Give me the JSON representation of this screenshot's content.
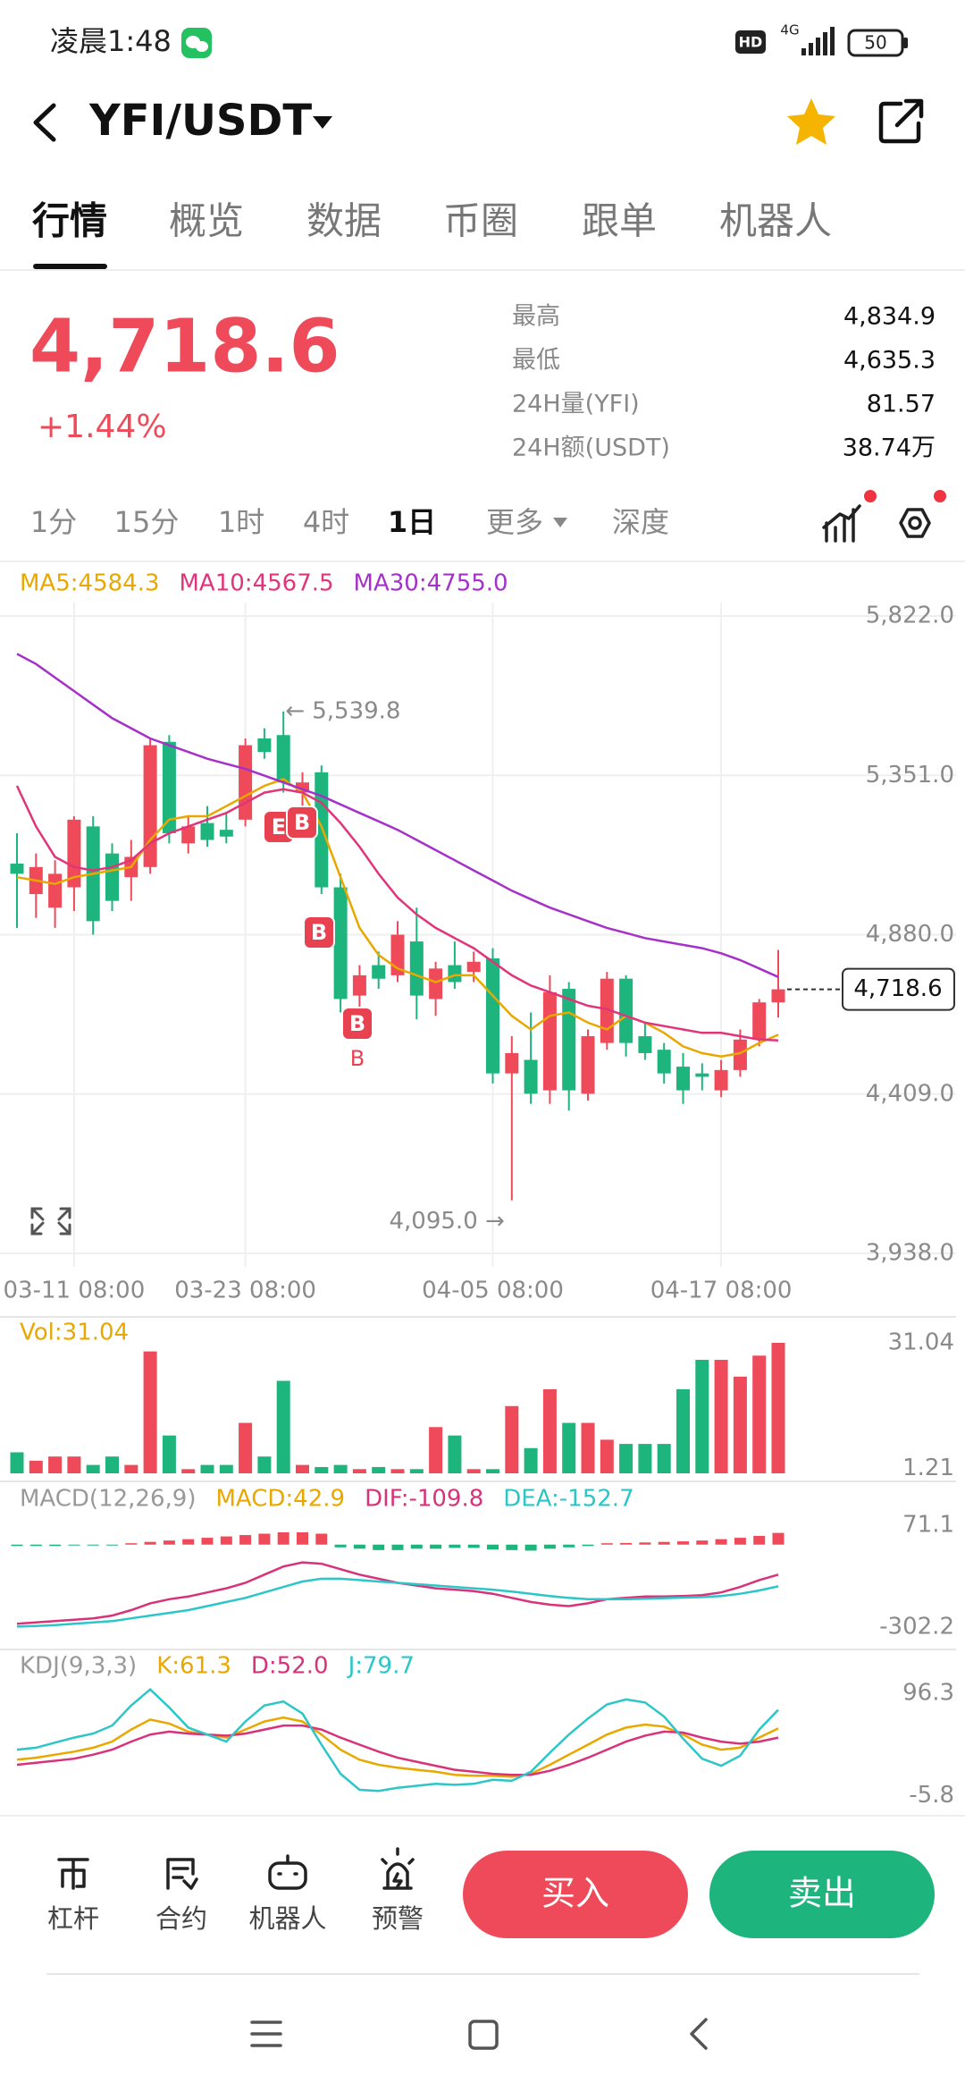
{
  "status_bar": {
    "time": "凌晨1:48",
    "hd": "HD",
    "network": "4G",
    "battery": "50"
  },
  "header": {
    "pair": "YFI/USDT"
  },
  "tabs": [
    "行情",
    "概览",
    "数据",
    "币圈",
    "跟单",
    "机器人"
  ],
  "active_tab": 0,
  "ticker": {
    "price": "4,718.6",
    "change": "+1.44%",
    "stats": [
      {
        "label": "最高",
        "value": "4,834.9"
      },
      {
        "label": "最低",
        "value": "4,635.3"
      },
      {
        "label": "24H量(YFI)",
        "value": "81.57"
      },
      {
        "label": "24H额(USDT)",
        "value": "38.74万"
      }
    ]
  },
  "intervals": [
    "1分",
    "15分",
    "1时",
    "4时",
    "1日",
    "更多",
    "深度"
  ],
  "active_interval": 4,
  "chart_data": [
    {
      "type": "candlestick",
      "up_color": "#ef4a5a",
      "down_color": "#1db47e",
      "categories": [
        null,
        null,
        null,
        "03-11 08:00",
        null,
        null,
        null,
        null,
        null,
        null,
        null,
        null,
        "03-23 08:00",
        null,
        null,
        null,
        null,
        null,
        null,
        null,
        null,
        null,
        null,
        null,
        null,
        "04-05 08:00",
        null,
        null,
        null,
        null,
        null,
        null,
        null,
        null,
        null,
        null,
        null,
        "04-17 08:00",
        null,
        null,
        null
      ],
      "open": [
        5090,
        5000,
        4960,
        5020,
        5200,
        5120,
        5050,
        5080,
        5450,
        5150,
        5210,
        5190,
        5220,
        5460,
        5470,
        5300,
        5360,
        5020,
        4700,
        4790,
        4760,
        4860,
        4690,
        4790,
        4770,
        4810,
        4470,
        4510,
        4420,
        4720,
        4410,
        4560,
        4750,
        4580,
        4540,
        4490,
        4470,
        4420,
        4480,
        4570,
        4680
      ],
      "high": [
        5180,
        5120,
        5100,
        5230,
        5230,
        5150,
        5160,
        5460,
        5470,
        5230,
        5260,
        5240,
        5460,
        5490,
        5539.8,
        5360,
        5380,
        5060,
        4790,
        4830,
        4920,
        4960,
        4800,
        4860,
        4830,
        4840,
        4580,
        4650,
        4760,
        4740,
        4600,
        4770,
        4760,
        4620,
        4560,
        4530,
        4500,
        4510,
        4600,
        4690,
        4834.9
      ],
      "low": [
        4900,
        4930,
        4900,
        4950,
        4880,
        4950,
        4980,
        5060,
        5150,
        5120,
        5140,
        5150,
        5200,
        5400,
        5300,
        5260,
        5000,
        4650,
        4650,
        4720,
        4740,
        4630,
        4640,
        4720,
        4740,
        4440,
        4095,
        4380,
        4380,
        4360,
        4390,
        4540,
        4520,
        4510,
        4440,
        4380,
        4420,
        4400,
        4460,
        4550,
        4635.3
      ],
      "close": [
        5060,
        5080,
        5060,
        5220,
        4920,
        4980,
        5110,
        5440,
        5180,
        5200,
        5160,
        5170,
        5440,
        5420,
        5330,
        5330,
        5020,
        4690,
        4760,
        4750,
        4880,
        4700,
        4780,
        4740,
        4800,
        4470,
        4530,
        4410,
        4710,
        4420,
        4580,
        4750,
        4560,
        4530,
        4470,
        4420,
        4460,
        4480,
        4570,
        4680,
        4718.6
      ],
      "series": [
        {
          "name": "MA5:4584.3",
          "color": "#e8a800",
          "values": [
            5050,
            5040,
            5030,
            5050,
            5060,
            5070,
            5080,
            5160,
            5220,
            5230,
            5230,
            5260,
            5290,
            5320,
            5340,
            5300,
            5200,
            5050,
            4900,
            4820,
            4780,
            4760,
            4740,
            4760,
            4760,
            4700,
            4640,
            4600,
            4640,
            4650,
            4620,
            4600,
            4640,
            4620,
            4590,
            4550,
            4530,
            4520,
            4530,
            4560,
            4584.3
          ]
        },
        {
          "name": "MA10:4567.5",
          "color": "#e0357a",
          "values": [
            5320,
            5200,
            5110,
            5080,
            5070,
            5080,
            5100,
            5150,
            5180,
            5200,
            5220,
            5240,
            5270,
            5300,
            5310,
            5300,
            5270,
            5210,
            5140,
            5060,
            4990,
            4940,
            4900,
            4870,
            4840,
            4800,
            4760,
            4730,
            4710,
            4690,
            4670,
            4660,
            4640,
            4620,
            4610,
            4600,
            4590,
            4590,
            4580,
            4570,
            4567.5
          ]
        },
        {
          "name": "MA30:4755.0",
          "color": "#a531c9",
          "values": [
            5710,
            5680,
            5640,
            5600,
            5560,
            5520,
            5490,
            5460,
            5440,
            5420,
            5400,
            5385,
            5370,
            5350,
            5330,
            5310,
            5290,
            5265,
            5240,
            5215,
            5190,
            5160,
            5130,
            5100,
            5070,
            5040,
            5010,
            4985,
            4960,
            4940,
            4920,
            4900,
            4885,
            4870,
            4860,
            4850,
            4840,
            4825,
            4805,
            4780,
            4755
          ]
        }
      ],
      "ylim": [
        3938,
        5822
      ],
      "yticks": [
        {
          "value": 5822,
          "label": "5,822.0"
        },
        {
          "value": 5351,
          "label": "5,351.0"
        },
        {
          "value": 4880,
          "label": "4,880.0"
        },
        {
          "value": 4409,
          "label": "4,409.0"
        },
        {
          "value": 3938,
          "label": "3,938.0"
        }
      ],
      "high_label": "← 5,539.8",
      "low_label": "4,095.0 →",
      "last_label": "4,718.6",
      "markers": [
        "E",
        "B",
        "B",
        "B",
        "B"
      ]
    },
    {
      "type": "bar",
      "series": [
        {
          "name": "Vol:31.04",
          "color": "#e8a800",
          "type": "bar",
          "values": [
            5,
            3,
            4,
            4,
            2,
            4,
            2,
            29,
            9,
            1,
            2,
            2,
            12,
            4,
            22,
            2,
            1.5,
            2,
            1,
            1.5,
            1,
            1,
            11,
            9,
            1,
            1,
            16,
            6,
            20,
            12,
            12,
            8,
            7,
            7,
            7,
            20,
            27,
            27,
            23,
            28,
            31.04
          ]
        }
      ],
      "ylim": [
        0,
        37
      ],
      "yticks": [
        31.04,
        1.21
      ]
    },
    {
      "type": "macd",
      "title": "MACD(12,26,9)",
      "up_color": "#ef4a5a",
      "down_color": "#1db47e",
      "series": [
        {
          "name": "MACD:42.9",
          "color": "#e8a800",
          "type": "bar",
          "values": [
            -5,
            -5,
            -5,
            -3,
            -3,
            -2,
            5,
            10,
            15,
            20,
            25,
            30,
            35,
            40,
            45,
            45,
            40,
            -10,
            -15,
            -20,
            -20,
            -15,
            -15,
            -12,
            -12,
            -18,
            -20,
            -22,
            -15,
            -10,
            -5,
            5,
            6,
            8,
            10,
            12,
            15,
            20,
            25,
            32,
            42.9
          ]
        },
        {
          "name": "DIF:-109.8",
          "color": "#d8327a",
          "type": "line",
          "values": [
            -290,
            -285,
            -280,
            -275,
            -270,
            -260,
            -240,
            -215,
            -200,
            -190,
            -175,
            -160,
            -140,
            -110,
            -80,
            -65,
            -70,
            -90,
            -110,
            -125,
            -140,
            -150,
            -160,
            -165,
            -170,
            -180,
            -195,
            -210,
            -220,
            -225,
            -215,
            -200,
            -195,
            -190,
            -190,
            -188,
            -185,
            -175,
            -155,
            -130,
            -109.8
          ]
        },
        {
          "name": "DEA:-152.7",
          "color": "#2cc6c9",
          "type": "line",
          "values": [
            -300,
            -298,
            -295,
            -290,
            -285,
            -280,
            -270,
            -260,
            -250,
            -240,
            -225,
            -210,
            -195,
            -175,
            -155,
            -135,
            -125,
            -125,
            -130,
            -135,
            -140,
            -145,
            -150,
            -155,
            -160,
            -165,
            -172,
            -180,
            -188,
            -195,
            -200,
            -200,
            -200,
            -198,
            -196,
            -194,
            -192,
            -188,
            -180,
            -168,
            -152.7
          ]
        }
      ],
      "ylim": [
        -361,
        225
      ],
      "yticks": [
        71.1,
        -302.2
      ]
    },
    {
      "type": "kdj",
      "title": "KDJ(9,3,3)",
      "series": [
        {
          "name": "K:61.3",
          "color": "#e8a800",
          "type": "line",
          "values": [
            30,
            32,
            35,
            38,
            42,
            48,
            60,
            70,
            66,
            58,
            55,
            52,
            60,
            68,
            72,
            68,
            55,
            40,
            30,
            25,
            22,
            20,
            18,
            15,
            14,
            14,
            13,
            16,
            25,
            35,
            45,
            55,
            62,
            65,
            63,
            55,
            45,
            40,
            42,
            52,
            61.3
          ]
        },
        {
          "name": "D:52.0",
          "color": "#d8327a",
          "type": "line",
          "values": [
            25,
            27,
            29,
            31,
            35,
            40,
            48,
            55,
            58,
            56,
            55,
            54,
            56,
            60,
            64,
            64,
            60,
            52,
            45,
            38,
            32,
            28,
            24,
            20,
            18,
            16,
            15,
            15,
            19,
            25,
            32,
            40,
            48,
            54,
            58,
            57,
            52,
            48,
            46,
            48,
            52.0
          ]
        },
        {
          "name": "J:79.7",
          "color": "#2cc6c9",
          "type": "line",
          "values": [
            40,
            42,
            47,
            52,
            56,
            64,
            84,
            100,
            82,
            62,
            55,
            48,
            68,
            84,
            88,
            76,
            45,
            16,
            0,
            -1,
            2,
            4,
            6,
            5,
            6,
            10,
            9,
            18,
            37,
            55,
            71,
            85,
            90,
            87,
            73,
            51,
            31,
            24,
            34,
            60,
            79.7
          ]
        }
      ],
      "ylim": [
        -24,
        138
      ],
      "yticks": [
        96.3,
        -5.8
      ]
    }
  ],
  "toolbar": [
    "杠杆",
    "合约",
    "机器人",
    "预警"
  ],
  "buttons": {
    "buy": "买入",
    "sell": "卖出"
  }
}
